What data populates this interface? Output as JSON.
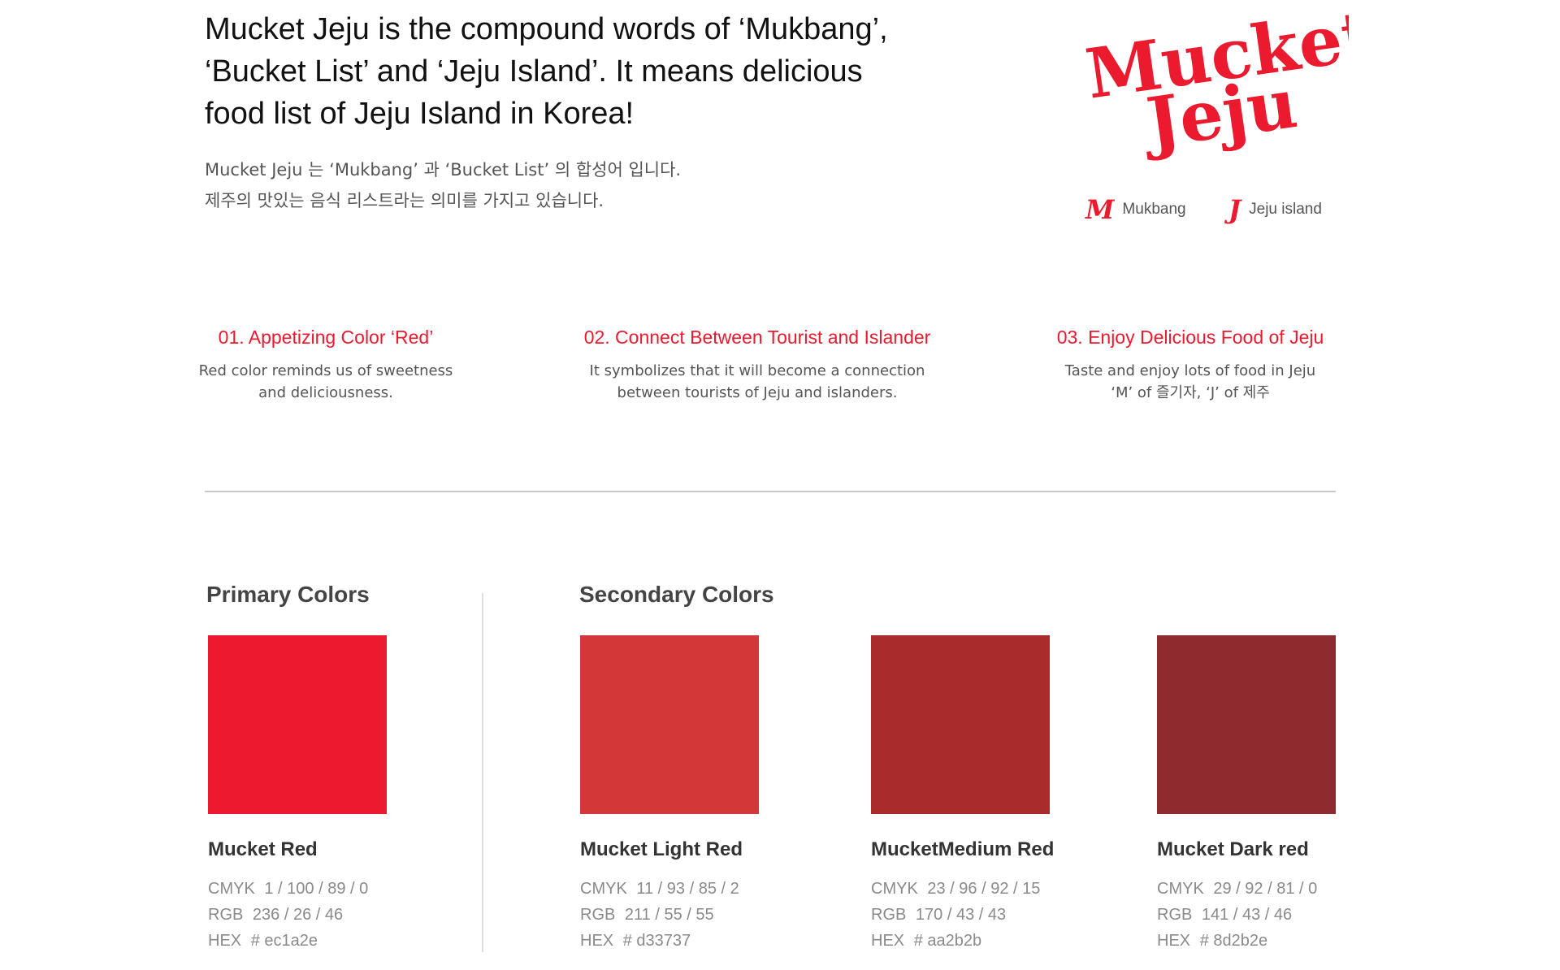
{
  "intro": {
    "headline_lines": [
      "Mucket Jeju is the compound words of ‘Mukbang’,",
      "‘Bucket List’ and ‘Jeju Island’. It means delicious",
      "food list of Jeju Island in Korea!"
    ],
    "korean_lines": [
      "Mucket Jeju 는 ‘Mukbang’ 과 ‘Bucket List’ 의 합성어 입니다.",
      "제주의 맛있는 음식 리스트라는 의미를 가지고 있습니다."
    ]
  },
  "logo": {
    "line1": "Mucket",
    "line2": "Jeju",
    "legend": [
      {
        "letter": "M",
        "label": "Mukbang"
      },
      {
        "letter": "J",
        "label": "Jeju island"
      }
    ]
  },
  "features": [
    {
      "title": "01. Appetizing Color ‘Red’",
      "desc": [
        "Red color reminds us of sweetness",
        "and deliciousness."
      ]
    },
    {
      "title": "02. Connect Between Tourist and Islander",
      "desc": [
        "It symbolizes that it will become a connection",
        "between tourists of Jeju and islanders."
      ]
    },
    {
      "title": "03. Enjoy Delicious Food of Jeju",
      "desc": [
        "Taste and enjoy lots of food in Jeju",
        "‘M’ of 즐기자, ‘J’ of 제주"
      ]
    }
  ],
  "primary": {
    "title": "Primary Colors",
    "colors": [
      {
        "name": "Mucket Red",
        "hex_color": "#ec1a2e",
        "cmyk": "1 / 100 / 89 / 0",
        "rgb": "236 / 26 / 46",
        "hex": "# ec1a2e"
      }
    ]
  },
  "secondary": {
    "title": "Secondary Colors",
    "colors": [
      {
        "name": "Mucket Light Red",
        "hex_color": "#d33737",
        "cmyk": "11 / 93 / 85 / 2",
        "rgb": "211 / 55 / 55",
        "hex": "# d33737"
      },
      {
        "name": "MucketMedium Red",
        "hex_color": "#aa2b2b",
        "cmyk": "23 / 96 / 92 / 15",
        "rgb": "170 / 43 / 43",
        "hex": "# aa2b2b"
      },
      {
        "name": "Mucket Dark red",
        "hex_color": "#8d2b2e",
        "cmyk": "29 / 92 / 81 / 0",
        "rgb": "141 / 43 / 46",
        "hex": "# 8d2b2e"
      }
    ]
  },
  "labels": {
    "cmyk": "CMYK",
    "rgb": "RGB",
    "hex": "HEX"
  }
}
